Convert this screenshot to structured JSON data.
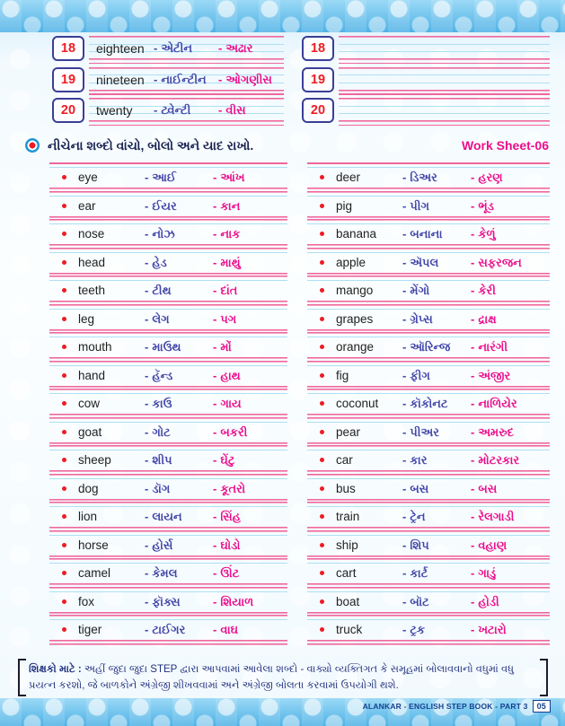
{
  "sep": {
    "dash": "-"
  },
  "header": {
    "instruction": "નીચેના શબ્દો વાંચો, બોલો અને યાદ રાખો.",
    "worksheet_label": "Work Sheet-06"
  },
  "numbers": {
    "filled": [
      {
        "num": "18",
        "word": "eighteen",
        "translit": "એટીન",
        "meaning": "અઢાર"
      },
      {
        "num": "19",
        "word": "nineteen",
        "translit": "નાઈન્ટીન",
        "meaning": "ઓગણીસ"
      },
      {
        "num": "20",
        "word": "twenty",
        "translit": "ટ્વેન્ટી",
        "meaning": "વીસ"
      }
    ],
    "empty": [
      {
        "num": "18"
      },
      {
        "num": "19"
      },
      {
        "num": "20"
      }
    ]
  },
  "vocab": {
    "left": [
      {
        "word": "eye",
        "translit": "આઈ",
        "meaning": "આંખ"
      },
      {
        "word": "ear",
        "translit": "ઈયર",
        "meaning": "કાન"
      },
      {
        "word": "nose",
        "translit": "નોઝ",
        "meaning": "નાક"
      },
      {
        "word": "head",
        "translit": "હેડ",
        "meaning": "માથું"
      },
      {
        "word": "teeth",
        "translit": "ટીથ",
        "meaning": "દાંત"
      },
      {
        "word": "leg",
        "translit": "લેગ",
        "meaning": "પગ"
      },
      {
        "word": "mouth",
        "translit": "માઉથ",
        "meaning": "મોં"
      },
      {
        "word": "hand",
        "translit": "હૅન્ડ",
        "meaning": "હાથ"
      },
      {
        "word": "cow",
        "translit": "કાઉ",
        "meaning": "ગાય"
      },
      {
        "word": "goat",
        "translit": "ગોટ",
        "meaning": "બકરી"
      },
      {
        "word": "sheep",
        "translit": "શીપ",
        "meaning": "ઘેંટુ"
      },
      {
        "word": "dog",
        "translit": "ડૉગ",
        "meaning": "કૂતરો"
      },
      {
        "word": "lion",
        "translit": "લાયન",
        "meaning": "સિંહ"
      },
      {
        "word": "horse",
        "translit": "હોર્સ",
        "meaning": "ઘોડો"
      },
      {
        "word": "camel",
        "translit": "કેમલ",
        "meaning": "ઊંટ"
      },
      {
        "word": "fox",
        "translit": "ફૉક્સ",
        "meaning": "શિયાળ"
      },
      {
        "word": "tiger",
        "translit": "ટાઈગર",
        "meaning": "વાઘ"
      }
    ],
    "right": [
      {
        "word": "deer",
        "translit": "ડિઅર",
        "meaning": "હરણ"
      },
      {
        "word": "pig",
        "translit": "પીગ",
        "meaning": "ભૂંડ"
      },
      {
        "word": "banana",
        "translit": "બનાના",
        "meaning": "કેળું"
      },
      {
        "word": "apple",
        "translit": "ઍપલ",
        "meaning": "સફરજન"
      },
      {
        "word": "mango",
        "translit": "મેંગો",
        "meaning": "કેરી"
      },
      {
        "word": "grapes",
        "translit": "ગ્રેપ્સ",
        "meaning": "દ્રાક્ષ"
      },
      {
        "word": "orange",
        "translit": "ઑરિન્જ",
        "meaning": "નારંગી"
      },
      {
        "word": "fig",
        "translit": "ફીગ",
        "meaning": "અંજીર"
      },
      {
        "word": "coconut",
        "translit": "કૉકોનટ",
        "meaning": "નાળિયેર"
      },
      {
        "word": "pear",
        "translit": "પીઅર",
        "meaning": "અમરુદ"
      },
      {
        "word": "car",
        "translit": "કાર",
        "meaning": "મોટરકાર"
      },
      {
        "word": "bus",
        "translit": "બસ",
        "meaning": "બસ"
      },
      {
        "word": "train",
        "translit": "ટ્રેન",
        "meaning": "રેલગાડી"
      },
      {
        "word": "ship",
        "translit": "શિપ",
        "meaning": "વહાણ"
      },
      {
        "word": "cart",
        "translit": "કાર્ટ",
        "meaning": "ગાડું"
      },
      {
        "word": "boat",
        "translit": "બૉટ",
        "meaning": "હોડી"
      },
      {
        "word": "truck",
        "translit": "ટ્રક",
        "meaning": "ખટારો"
      }
    ]
  },
  "footer": {
    "note_label": "શિક્ષકો માટે :",
    "note_text": "અહીં જુદા જુદા STEP દ્વારા આપવામાં આવેલા શબ્દો - વાક્યો વ્યક્તિગત કે સમૂહમાં બોલાવવાનો વધુમાં વધુ પ્રયત્ન કરશો, જે બાળકોને અંગ્રેજી શીખવવામાં અને અંગ્રેજી બોલતા કરવામાં ઉપયોગી થશે.",
    "brand": "ALANKAR - ENGLISH STEP BOOK - PART 3",
    "page_number": "05"
  },
  "colors": {
    "rule_pink": "#f0669d",
    "rule_blue": "#aedff5",
    "box_navy": "#3a3f97",
    "number_red": "#ed1c24",
    "translit_blue": "#4246a8",
    "meaning_magenta": "#ec0e8c",
    "band_blue": "#5fbdec",
    "note_navy": "#23317e"
  }
}
